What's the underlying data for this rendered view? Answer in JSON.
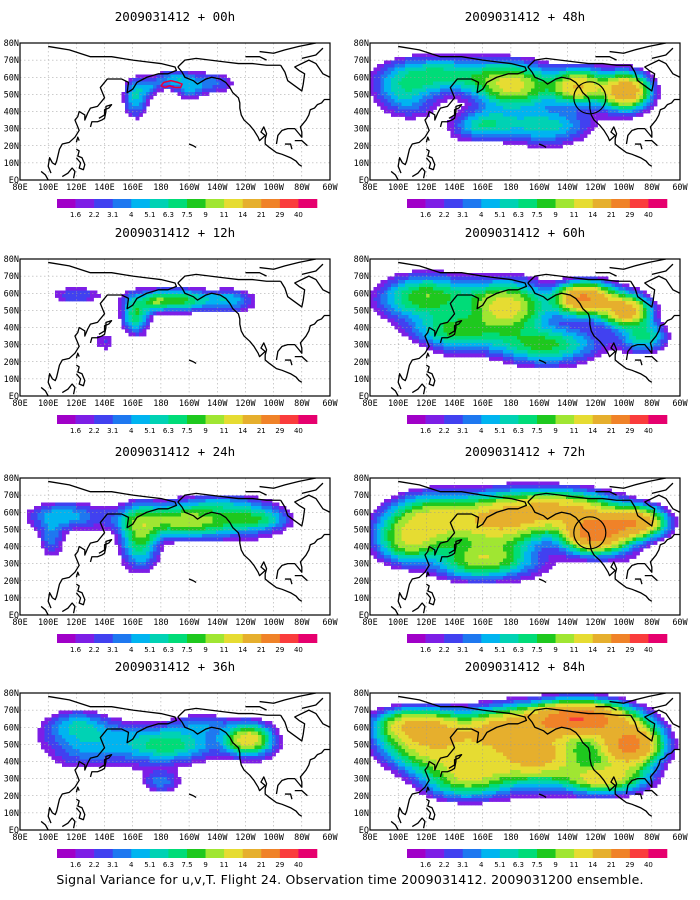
{
  "caption": "Signal Variance for u,v,T. Flight 24. Observation time 2009031412. 2009031200 ensemble.",
  "lon_labels": [
    "80E",
    "100E",
    "120E",
    "140E",
    "160E",
    "180",
    "160W",
    "140W",
    "120W",
    "100W",
    "80W",
    "60W"
  ],
  "lat_labels": [
    "80N",
    "70N",
    "60N",
    "50N",
    "40N",
    "30N",
    "20N",
    "10N",
    "EQ"
  ],
  "colorbar": {
    "levels": [
      "1.6",
      "2.2",
      "3.1",
      "4",
      "5.1",
      "6.3",
      "7.5",
      "9",
      "11",
      "14",
      "21",
      "29",
      "40"
    ],
    "colors": [
      "#a000c8",
      "#7d1ee6",
      "#4141f0",
      "#1e78f0",
      "#00b4f0",
      "#00d2b4",
      "#00dc78",
      "#1ec81e",
      "#a0e632",
      "#e6dc32",
      "#e6af2d",
      "#f08228",
      "#fa3c3c",
      "#e6006e"
    ]
  },
  "coast_color": "#000000",
  "circle_color": "#000000",
  "panels": [
    {
      "title": "2009031412 + 00h",
      "lead_hours": 0,
      "marker": "red-outline"
    },
    {
      "title": "2009031412 + 48h",
      "lead_hours": 48,
      "marker": "circle"
    },
    {
      "title": "2009031412 + 12h",
      "lead_hours": 12
    },
    {
      "title": "2009031412 + 60h",
      "lead_hours": 60
    },
    {
      "title": "2009031412 + 24h",
      "lead_hours": 24
    },
    {
      "title": "2009031412 + 72h",
      "lead_hours": 72,
      "marker": "circle"
    },
    {
      "title": "2009031412 + 36h",
      "lead_hours": 36
    },
    {
      "title": "2009031412 + 84h",
      "lead_hours": 84
    }
  ]
}
